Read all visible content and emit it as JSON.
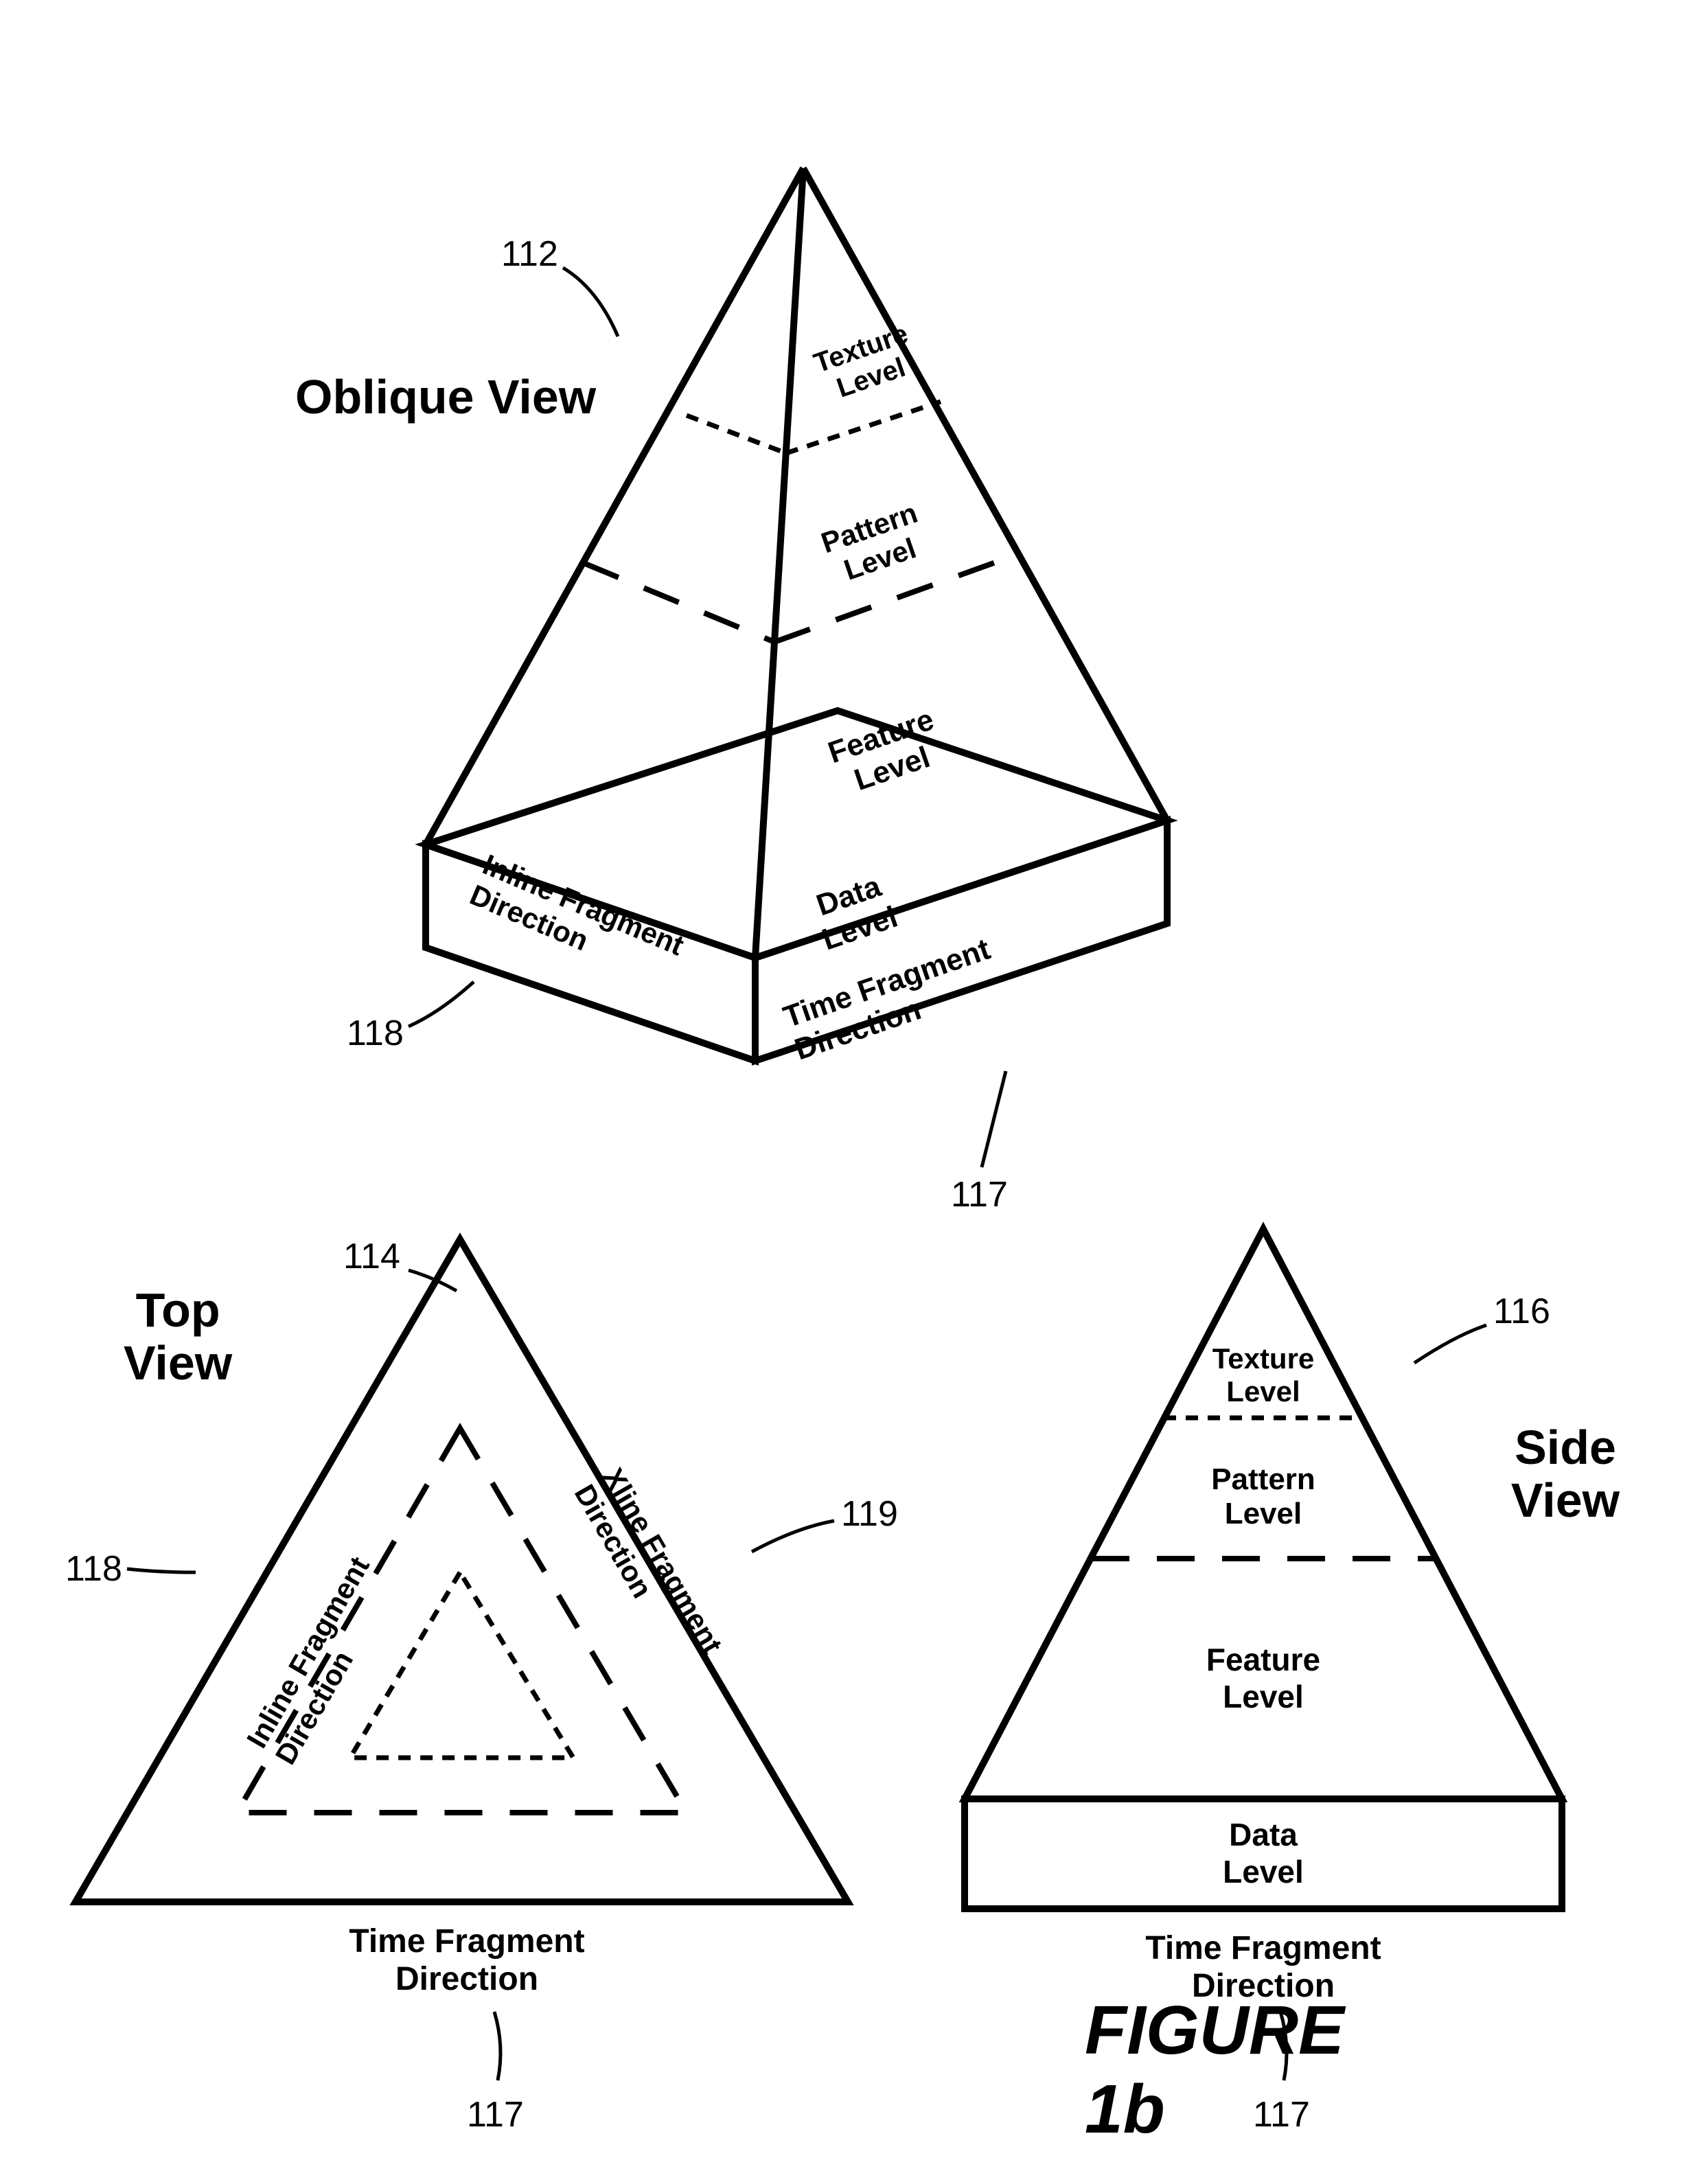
{
  "figure_title": "FIGURE 1b",
  "views": {
    "oblique": {
      "title": "Oblique View"
    },
    "top": {
      "title": "Top View"
    },
    "side": {
      "title": "Side View"
    }
  },
  "levels": {
    "texture": "Texture Level",
    "pattern": "Pattern Level",
    "feature": "Feature Level",
    "data": "Data Level"
  },
  "directions": {
    "inline": "Inline Fragment Direction",
    "time": "Time Fragment Direction",
    "xline": "Xline Fragment Direction"
  },
  "refs": {
    "r112": "112",
    "r114": "114",
    "r116": "116",
    "r117": "117",
    "r118": "118",
    "r119": "119"
  },
  "style": {
    "stroke_color": "#000000",
    "stroke_heavy": 10,
    "stroke_medium": 7,
    "stroke_light": 5,
    "dash_long": "50 35",
    "dash_short": "18 14",
    "font_title": 70,
    "font_label": 42,
    "font_ref": 52,
    "font_dir": 44,
    "font_figure": 100,
    "background": "#ffffff"
  }
}
